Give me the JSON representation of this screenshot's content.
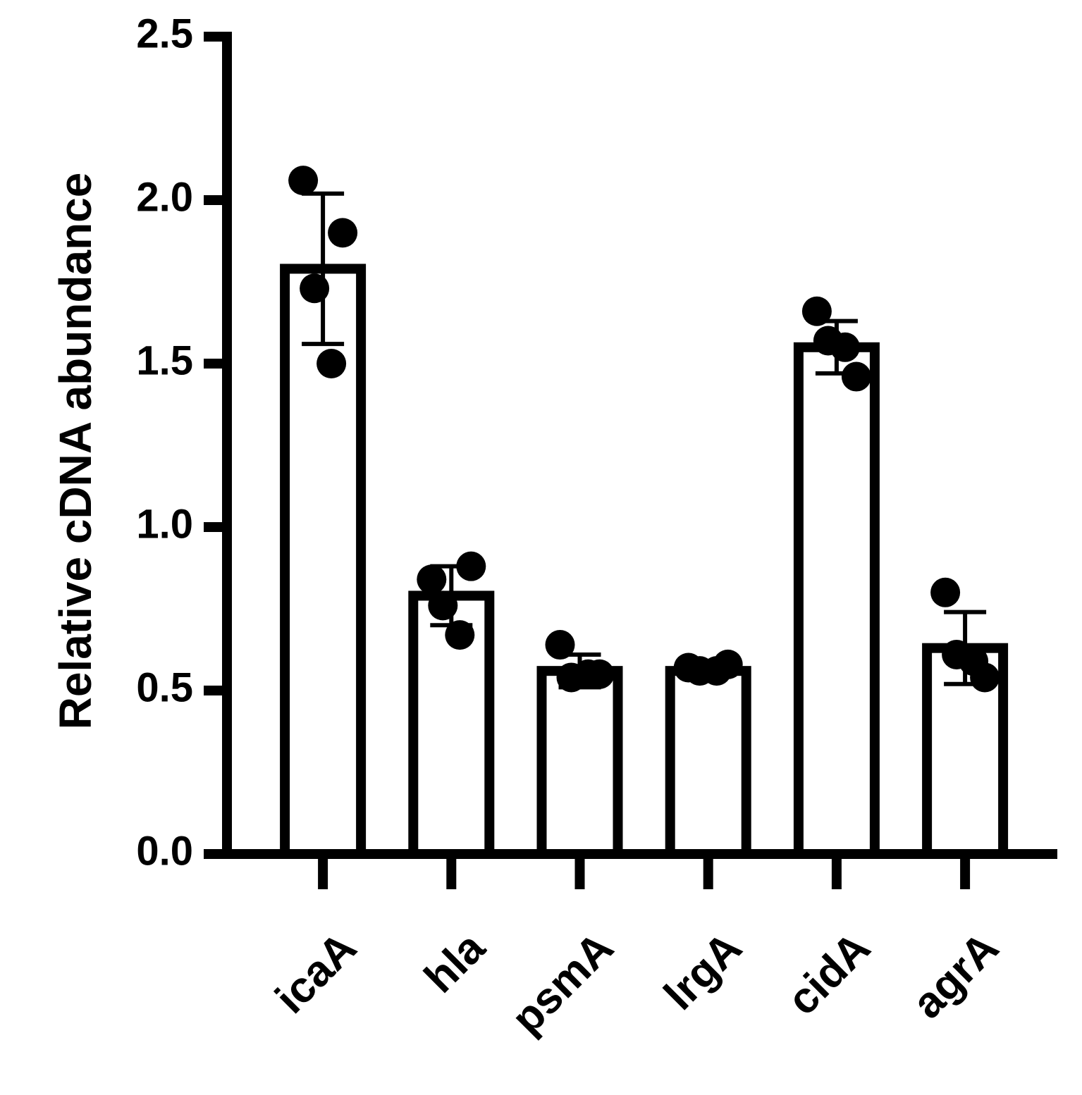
{
  "chart_data": {
    "type": "bar",
    "y_label": "Relative cDNA abundance",
    "categories": [
      "icaA",
      "hla",
      "psmA",
      "lrgA",
      "cidA",
      "agrA"
    ],
    "values": [
      1.79,
      0.79,
      0.56,
      0.56,
      1.55,
      0.63
    ],
    "errors": [
      0.23,
      0.09,
      0.05,
      0.01,
      0.08,
      0.11
    ],
    "points": [
      [
        2.06,
        1.9,
        1.73,
        1.5
      ],
      [
        0.84,
        0.88,
        0.76,
        0.67
      ],
      [
        0.64,
        0.55,
        0.54,
        0.55
      ],
      [
        0.57,
        0.58,
        0.56,
        0.56
      ],
      [
        1.66,
        1.46,
        1.57,
        1.55
      ],
      [
        0.8,
        0.54,
        0.61,
        0.59
      ]
    ],
    "color": "#000000",
    "ylim": [
      0,
      2.5
    ],
    "yticks": [
      {
        "value": 0,
        "label": "0.0"
      },
      0.5,
      {
        "value": 1,
        "label": "1.0"
      },
      1.5,
      {
        "value": 2,
        "label": "2.0"
      },
      2.5
    ]
  }
}
